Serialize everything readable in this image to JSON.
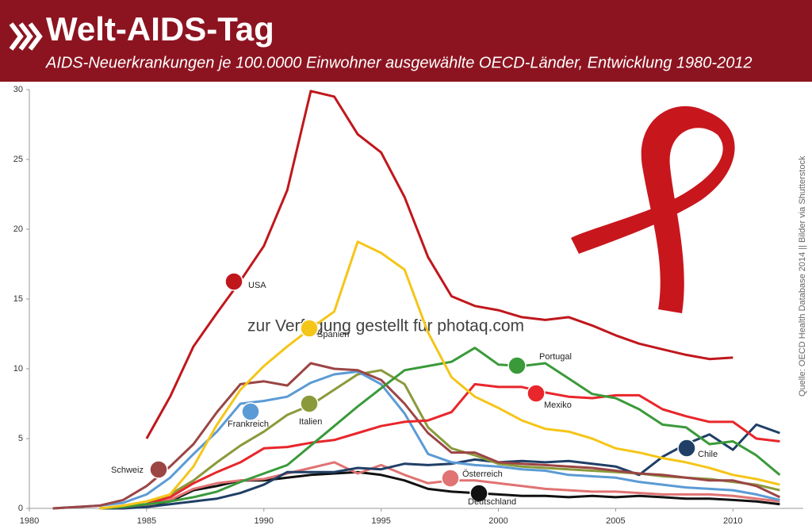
{
  "chart_data": {
    "type": "line",
    "title": "Welt-AIDS-Tag",
    "subtitle": "AIDS-Neuerkrankungen je 100.0000 Einwohner ausgewählte OECD-Länder, Entwicklung 1980-2012",
    "watermark": "zur Verfügung gestellt für photaq.com",
    "source": "Quelle: OECD Health Database 2014 || Bilder via Shutterstock",
    "x": [
      1981,
      1982,
      1983,
      1984,
      1985,
      1986,
      1987,
      1988,
      1989,
      1990,
      1991,
      1992,
      1993,
      1994,
      1995,
      1996,
      1997,
      1998,
      1999,
      2000,
      2001,
      2002,
      2003,
      2004,
      2005,
      2006,
      2007,
      2008,
      2009,
      2010,
      2011,
      2012
    ],
    "xlim": [
      1980,
      2013
    ],
    "xticks": [
      1980,
      1985,
      1990,
      1995,
      2000,
      2005,
      2010
    ],
    "ylim": [
      0,
      30
    ],
    "yticks": [
      0,
      5,
      10,
      15,
      20,
      25,
      30
    ],
    "series": [
      {
        "name": "Deutschland",
        "color": "#111111",
        "values": [
          null,
          null,
          0,
          0.1,
          0.2,
          0.5,
          1.3,
          1.6,
          2,
          2,
          2.2,
          2.4,
          2.5,
          2.6,
          2.4,
          2,
          1.4,
          1.2,
          1.1,
          1,
          0.9,
          0.9,
          0.8,
          0.9,
          0.8,
          0.9,
          0.8,
          0.7,
          0.7,
          0.6,
          0.5,
          0.3
        ]
      },
      {
        "name": "Österreich",
        "color": "#e07373",
        "values": [
          null,
          null,
          0,
          0.1,
          0.2,
          0.6,
          1.4,
          1.8,
          2,
          2.1,
          2.5,
          2.9,
          3.3,
          2.5,
          3.1,
          2.4,
          1.8,
          2,
          2,
          1.8,
          1.6,
          1.4,
          1.3,
          1.2,
          1.2,
          1.1,
          1,
          1,
          1,
          0.9,
          0.7,
          0.5
        ]
      },
      {
        "name": "Chile",
        "color": "#1f3f66",
        "values": [
          null,
          null,
          0,
          0,
          0.1,
          0.3,
          0.5,
          0.7,
          1.1,
          1.7,
          2.6,
          2.6,
          2.6,
          2.9,
          2.8,
          3.2,
          3.1,
          3.2,
          3.5,
          3.3,
          3.4,
          3.3,
          3.4,
          3.2,
          3,
          2.4,
          3.7,
          4.6,
          5.3,
          4.2,
          6,
          5.4
        ]
      },
      {
        "name": "Italien",
        "color": "#8a9a3a",
        "values": [
          null,
          null,
          0,
          0.1,
          0.3,
          1,
          2,
          3.3,
          4.5,
          5.5,
          6.7,
          7.4,
          8.5,
          9.6,
          9.9,
          8.9,
          5.8,
          4.3,
          3.8,
          3.2,
          3,
          2.9,
          2.8,
          2.7,
          2.6,
          2.5,
          2.3,
          2.2,
          2.1,
          1.9,
          1.7,
          1.3
        ]
      },
      {
        "name": "Frankreich",
        "color": "#5b9bd5",
        "values": [
          0,
          0.1,
          0.2,
          0.4,
          1,
          2.2,
          3.9,
          5.5,
          7.5,
          7.7,
          8,
          9,
          9.6,
          9.8,
          8.9,
          6.8,
          3.9,
          3.3,
          3.1,
          3,
          2.8,
          2.7,
          2.4,
          2.3,
          2.2,
          1.9,
          1.7,
          1.5,
          1.4,
          1.3,
          1,
          0.6
        ]
      },
      {
        "name": "Schweiz",
        "color": "#9b4545",
        "values": [
          0,
          0.1,
          0.2,
          0.6,
          1.6,
          3,
          4.6,
          6.9,
          8.9,
          9.1,
          8.8,
          10.4,
          10,
          9.9,
          9.2,
          7.5,
          5.4,
          4,
          4,
          3.3,
          3.2,
          3.1,
          3,
          2.9,
          2.7,
          2.5,
          2.4,
          2.2,
          2,
          2,
          1.6,
          0.8
        ]
      },
      {
        "name": "Mexiko",
        "color": "#e8262b",
        "values": [
          null,
          null,
          0,
          0.1,
          0.3,
          0.8,
          1.8,
          2.6,
          3.3,
          4.3,
          4.4,
          4.7,
          4.9,
          5.4,
          5.9,
          6.2,
          6.3,
          6.9,
          8.9,
          8.7,
          8.7,
          8.3,
          8,
          7.9,
          8.1,
          8.1,
          7.1,
          6.6,
          6.2,
          6.2,
          5,
          4.8
        ]
      },
      {
        "name": "Portugal",
        "color": "#3a9a3a",
        "values": [
          null,
          null,
          0,
          0.1,
          0.3,
          0.5,
          0.8,
          1.2,
          1.9,
          2.5,
          3.1,
          4.5,
          5.9,
          7.3,
          8.6,
          9.9,
          10.2,
          10.5,
          11.5,
          10.3,
          10.2,
          10.4,
          9.3,
          8.2,
          7.9,
          7.1,
          6,
          5.8,
          4.6,
          4.8,
          3.8,
          2.4
        ]
      },
      {
        "name": "Spanien",
        "color": "#f5c518",
        "values": [
          null,
          null,
          0,
          0.2,
          0.5,
          1,
          3,
          6,
          8.5,
          10.2,
          11.6,
          12.9,
          14.1,
          19.1,
          18.3,
          17.1,
          12.6,
          9.4,
          8,
          7.2,
          6.3,
          5.7,
          5.5,
          5,
          4.3,
          4,
          3.6,
          3.3,
          2.9,
          2.4,
          2.1,
          1.7
        ]
      },
      {
        "name": "USA",
        "color": "#c0171c",
        "values": [
          null,
          null,
          null,
          null,
          5,
          8,
          11.6,
          14,
          16.3,
          18.8,
          22.8,
          29.9,
          29.5,
          26.8,
          25.5,
          22.3,
          18,
          15.2,
          14.5,
          14.2,
          13.7,
          13.5,
          13.7,
          13.1,
          12.4,
          11.8,
          11.4,
          11,
          10.7,
          10.8,
          null,
          null
        ]
      }
    ]
  }
}
